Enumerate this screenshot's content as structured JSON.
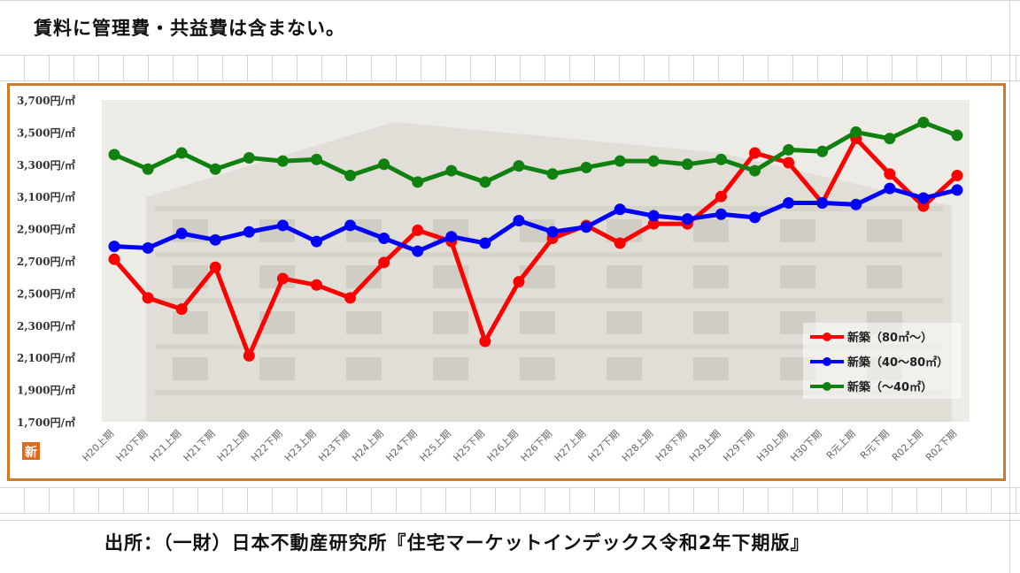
{
  "note": "賃料に管理費・共益費は含まない。",
  "source": "出所：（一財）日本不動産研究所『住宅マーケットインデックス令和2年下期版』",
  "badge": "新",
  "chart_data": {
    "type": "line",
    "y_tick_labels": [
      "3,700円/㎡",
      "3,500円/㎡",
      "3,300円/㎡",
      "3,100円/㎡",
      "2,900円/㎡",
      "2,700円/㎡",
      "2,500円/㎡",
      "2,300円/㎡",
      "2,100円/㎡",
      "1,900円/㎡",
      "1,700円/㎡"
    ],
    "y_ticks": [
      3700,
      3500,
      3300,
      3100,
      2900,
      2700,
      2500,
      2300,
      2100,
      1900,
      1700
    ],
    "ylim": [
      1700,
      3700
    ],
    "categories": [
      "H20上期",
      "H20下期",
      "H21上期",
      "H21下期",
      "H22上期",
      "H22下期",
      "H23上期",
      "H23下期",
      "H24上期",
      "H24下期",
      "H25上期",
      "H25下期",
      "H26上期",
      "H26下期",
      "H27上期",
      "H27下期",
      "H28上期",
      "H28下期",
      "H29上期",
      "H29下期",
      "H30上期",
      "H30下期",
      "R元上期",
      "R元下期",
      "R02上期",
      "R02下期"
    ],
    "legend_position": "bottom-right",
    "series": [
      {
        "name": "新築（80㎡～）",
        "color": "#ff0000",
        "values": [
          2710,
          2470,
          2400,
          2660,
          2110,
          2590,
          2550,
          2470,
          2690,
          2890,
          2820,
          2200,
          2570,
          2840,
          2920,
          2810,
          2930,
          2930,
          3100,
          3370,
          3310,
          3060,
          3460,
          3240,
          3040,
          3230
        ]
      },
      {
        "name": "新築（40～80㎡）",
        "color": "#0000ff",
        "values": [
          2790,
          2780,
          2870,
          2830,
          2880,
          2920,
          2820,
          2920,
          2840,
          2760,
          2850,
          2810,
          2950,
          2880,
          2910,
          3020,
          2980,
          2960,
          2990,
          2970,
          3060,
          3060,
          3050,
          3150,
          3090,
          3140
        ]
      },
      {
        "name": "新築（～40㎡）",
        "color": "#108010",
        "values": [
          3360,
          3270,
          3370,
          3270,
          3340,
          3320,
          3330,
          3230,
          3300,
          3190,
          3260,
          3190,
          3290,
          3240,
          3280,
          3320,
          3320,
          3300,
          3330,
          3260,
          3390,
          3380,
          3500,
          3460,
          3560,
          3480
        ]
      }
    ]
  }
}
